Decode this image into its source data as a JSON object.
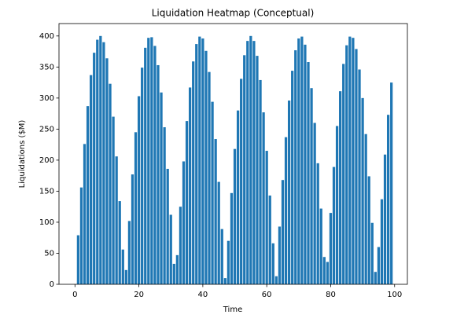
{
  "chart_data": {
    "type": "bar",
    "title": "Liquidation Heatmap (Conceptual)",
    "xlabel": "Time",
    "ylabel": "Liquidations ($M)",
    "color": "#1f77b4",
    "x": [
      0,
      1,
      2,
      3,
      4,
      5,
      6,
      7,
      8,
      9,
      10,
      11,
      12,
      13,
      14,
      15,
      16,
      17,
      18,
      19,
      20,
      21,
      22,
      23,
      24,
      25,
      26,
      27,
      28,
      29,
      30,
      31,
      32,
      33,
      34,
      35,
      36,
      37,
      38,
      39,
      40,
      41,
      42,
      43,
      44,
      45,
      46,
      47,
      48,
      49,
      50,
      51,
      52,
      53,
      54,
      55,
      56,
      57,
      58,
      59,
      60,
      61,
      62,
      63,
      64,
      65,
      66,
      67,
      68,
      69,
      70,
      71,
      72,
      73,
      74,
      75,
      76,
      77,
      78,
      79,
      80,
      81,
      82,
      83,
      84,
      85,
      86,
      87,
      88,
      89,
      90,
      91,
      92,
      93,
      94,
      95,
      96,
      97,
      98,
      99
    ],
    "values": [
      0,
      79,
      156,
      226,
      287,
      337,
      373,
      394,
      400,
      390,
      364,
      323,
      270,
      206,
      134,
      56,
      23,
      102,
      177,
      245,
      303,
      349,
      381,
      397,
      398,
      384,
      353,
      309,
      253,
      186,
      112,
      33,
      47,
      125,
      198,
      263,
      317,
      359,
      387,
      399,
      396,
      376,
      342,
      294,
      234,
      165,
      89,
      10,
      70,
      147,
      218,
      280,
      331,
      369,
      392,
      400,
      392,
      368,
      329,
      277,
      215,
      143,
      66,
      13,
      93,
      168,
      237,
      296,
      344,
      377,
      396,
      399,
      386,
      358,
      316,
      260,
      195,
      122,
      44,
      36,
      115,
      189,
      255,
      311,
      355,
      385,
      399,
      397,
      379,
      346,
      300,
      242,
      174,
      99,
      20,
      60,
      137,
      209,
      273,
      325
    ],
    "xlim": [
      -5,
      104
    ],
    "xticks": [
      0,
      20,
      40,
      60,
      80,
      100
    ],
    "ylim": [
      0,
      420
    ],
    "yticks": [
      0,
      50,
      100,
      150,
      200,
      250,
      300,
      350,
      400
    ]
  }
}
